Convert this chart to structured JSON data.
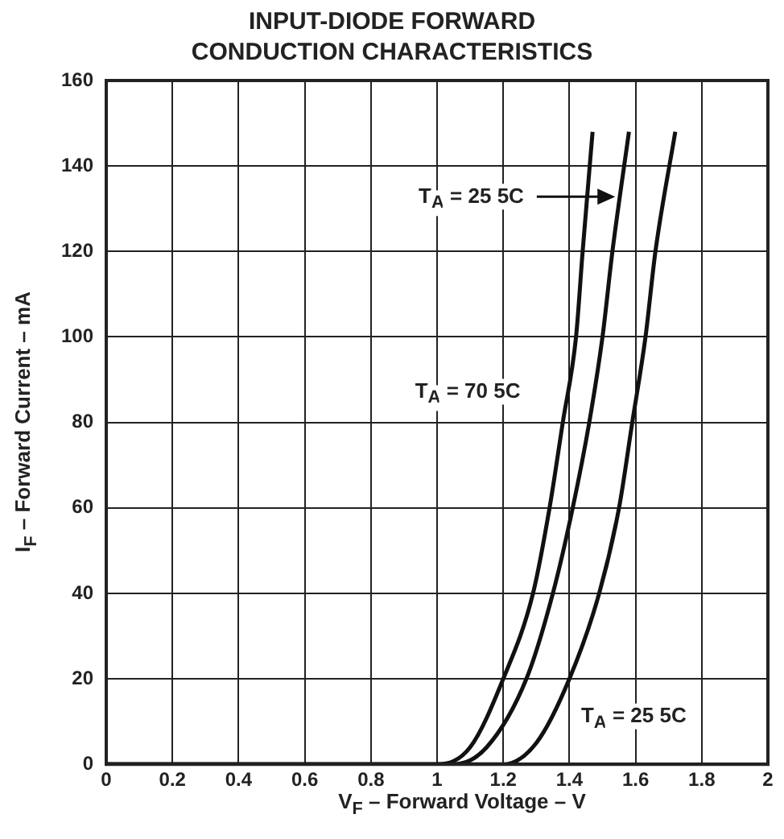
{
  "chart_data": {
    "type": "line",
    "title": "INPUT-DIODE FORWARD\nCONDUCTION CHARACTERISTICS",
    "xlabel": "V$_{F}$ – Forward Voltage – V",
    "ylabel": "I$_{F}$ – Forward Current – mA",
    "series": [
      {
        "name": "T$_{A}$ = 70 5C",
        "color": "#111111",
        "x": [
          0,
          1.0,
          1.1,
          1.2,
          1.29,
          1.34,
          1.38,
          1.42,
          1.44,
          1.47
        ],
        "values": [
          0,
          0,
          4,
          20,
          40,
          60,
          80,
          100,
          120,
          148
        ]
      },
      {
        "name": "T$_{A}$ = 25 5C",
        "color": "#111111",
        "x": [
          0,
          1.05,
          1.15,
          1.27,
          1.35,
          1.41,
          1.46,
          1.5,
          1.53,
          1.58
        ],
        "values": [
          0,
          0,
          4,
          20,
          40,
          60,
          80,
          100,
          120,
          148
        ]
      },
      {
        "name": "T$_{A}$ = 25 5C",
        "color": "#111111",
        "x": [
          0,
          1.2,
          1.3,
          1.4,
          1.49,
          1.55,
          1.59,
          1.63,
          1.66,
          1.72
        ],
        "values": [
          0,
          0,
          5,
          20,
          40,
          60,
          80,
          100,
          120,
          148
        ]
      }
    ],
    "xlim": [
      0,
      2
    ],
    "xticks": [
      0,
      0.2,
      0.4,
      0.6,
      0.8,
      1,
      1.2,
      1.4,
      1.6,
      1.8,
      2
    ],
    "ylim": [
      0,
      160
    ],
    "yticks": [
      0,
      20,
      40,
      60,
      80,
      100,
      120,
      140,
      160
    ],
    "grid": true,
    "marker": "none",
    "line_style": "solid"
  }
}
